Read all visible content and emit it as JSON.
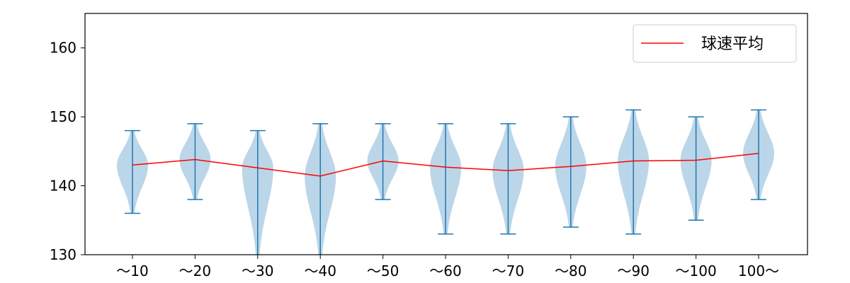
{
  "chart_data": {
    "type": "violin",
    "title": "",
    "xlabel": "",
    "ylabel": "",
    "ylim": [
      130,
      165
    ],
    "yticks": [
      130,
      140,
      150,
      160
    ],
    "categories": [
      "〜10",
      "〜20",
      "〜30",
      "〜40",
      "〜50",
      "〜60",
      "〜70",
      "〜80",
      "〜90",
      "〜100",
      "100〜"
    ],
    "violins": [
      {
        "min": 136,
        "max": 148,
        "mean": 143.0
      },
      {
        "min": 138,
        "max": 149,
        "mean": 143.8
      },
      {
        "min": 130,
        "max": 148,
        "mean": 142.6
      },
      {
        "min": 130,
        "max": 149,
        "mean": 141.4
      },
      {
        "min": 138,
        "max": 149,
        "mean": 143.6
      },
      {
        "min": 133,
        "max": 149,
        "mean": 142.7
      },
      {
        "min": 133,
        "max": 149,
        "mean": 142.2
      },
      {
        "min": 134,
        "max": 150,
        "mean": 142.8
      },
      {
        "min": 133,
        "max": 151,
        "mean": 143.6
      },
      {
        "min": 135,
        "max": 150,
        "mean": 143.7
      },
      {
        "min": 138,
        "max": 151,
        "mean": 144.7
      }
    ],
    "series": [
      {
        "name": "球速平均",
        "values": [
          143.0,
          143.8,
          142.6,
          141.4,
          143.6,
          142.7,
          142.2,
          142.8,
          143.6,
          143.7,
          144.7
        ]
      }
    ],
    "legend": {
      "position": "top-right",
      "entries": [
        "球速平均"
      ]
    },
    "colors": {
      "violin_fill": "#1f77b4",
      "violin_line": "#1f77b4",
      "mean_line": "#ff0000",
      "axes": "#000000"
    },
    "grid": false
  }
}
